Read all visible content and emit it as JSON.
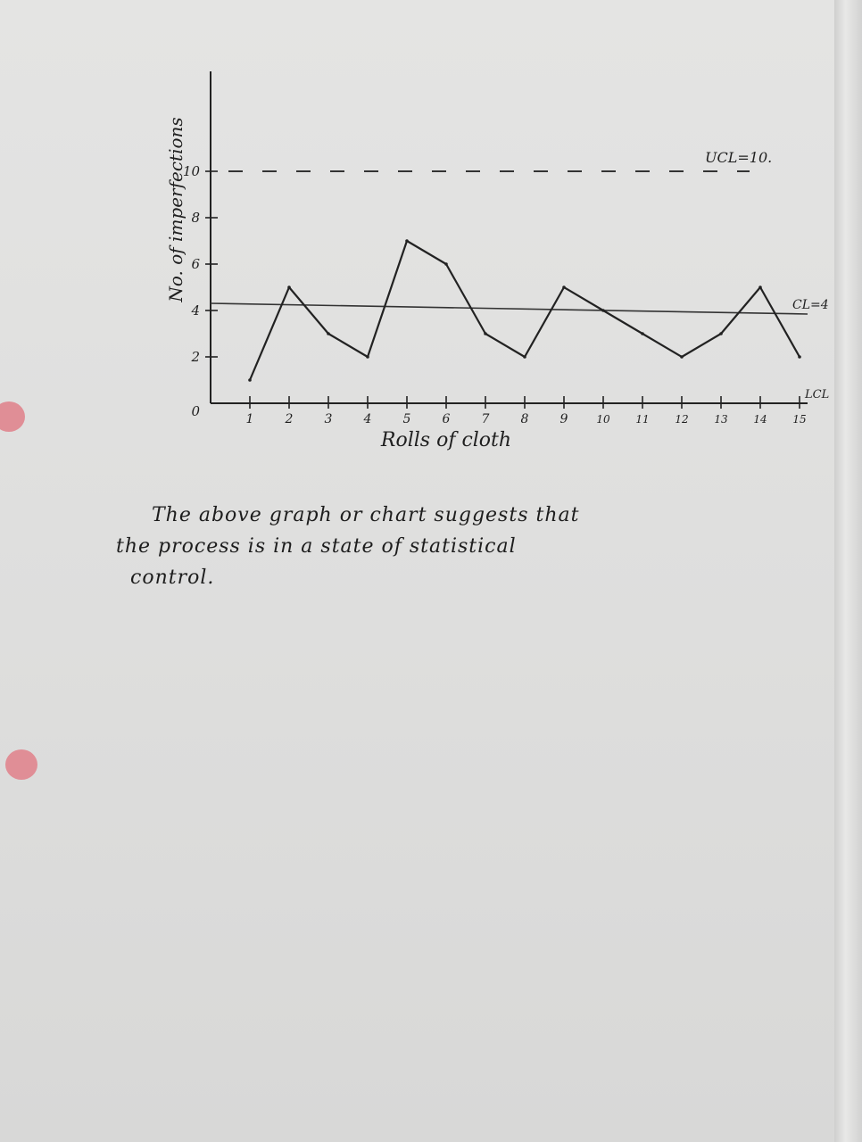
{
  "chart_data": {
    "type": "line",
    "title": "",
    "xlabel": "Rolls of cloth",
    "ylabel": "No. of imperfections",
    "x": [
      1,
      2,
      3,
      4,
      5,
      6,
      7,
      8,
      9,
      10,
      11,
      12,
      13,
      14,
      15
    ],
    "x_tick_labels": [
      "1",
      "2",
      "3",
      "4",
      "5",
      "6",
      "7",
      "8",
      "9",
      "10",
      "11",
      "12",
      "13",
      "14",
      "15"
    ],
    "y_tick_labels": [
      "0",
      "2",
      "4",
      "6",
      "8",
      "10"
    ],
    "y_ticks": [
      0,
      2,
      4,
      6,
      8,
      10
    ],
    "ylim": [
      0,
      12
    ],
    "series": [
      {
        "name": "",
        "values": [
          1,
          5,
          3,
          2,
          7,
          6,
          3,
          2,
          5,
          4,
          3,
          2,
          3,
          5,
          2
        ]
      }
    ],
    "control_lines": {
      "ucl": {
        "value": 10,
        "label": "UCL=10.",
        "style": "dashed"
      },
      "cl": {
        "value": 4,
        "label": "CL=4",
        "style": "solid"
      },
      "lcl": {
        "value": 0,
        "label": "LCL"
      }
    },
    "grid": false,
    "legend": "none"
  },
  "note": {
    "line1": "The above graph or chart suggests that",
    "line2": "the process is in a state of statistical",
    "line3": "control."
  }
}
